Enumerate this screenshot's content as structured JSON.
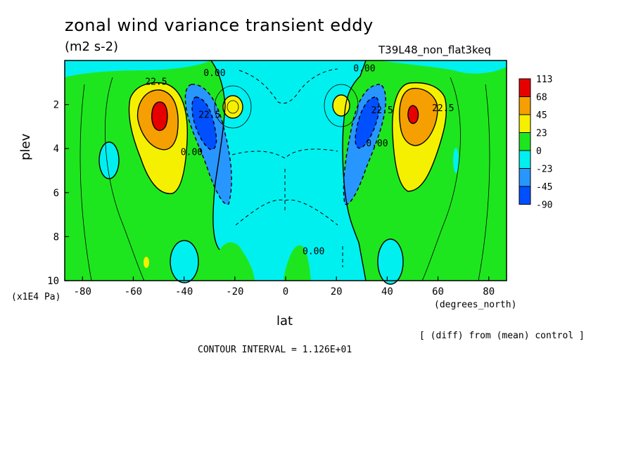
{
  "title": "zonal wind variance transient eddy",
  "units": "(m2 s-2)",
  "run_name": "T39L48_non_flat3keq",
  "xlabel": "lat",
  "ylabel": "plev",
  "xunits": "(degrees_north)",
  "yunits": "(x1E4 Pa)",
  "diff_note": "[ (diff) from (mean) control ]",
  "contour_interval": "CONTOUR INTERVAL = 1.126E+01",
  "chart_data": {
    "type": "heatmap",
    "title": "zonal wind variance transient eddy",
    "units": "(m2 s-2)",
    "xlabel": "lat",
    "ylabel": "plev",
    "xlim": [
      -87,
      87
    ],
    "ylim": [
      10,
      0
    ],
    "x_ticks": [
      -80,
      -60,
      -40,
      -20,
      0,
      20,
      40,
      60,
      80
    ],
    "y_ticks": [
      2,
      4,
      6,
      8,
      10
    ],
    "colorbar": {
      "labels": [
        "113",
        "68",
        "45",
        "23",
        "0",
        "-23",
        "-45",
        "-90"
      ],
      "colors": [
        "#e60000",
        "#f5a000",
        "#f5f000",
        "#1ee61e",
        "#00f0f0",
        "#2896ff",
        "#0050ff"
      ]
    },
    "contour_labels": [
      {
        "text": "22.5",
        "lat": -51,
        "plev": 1.1
      },
      {
        "text": "0.00",
        "lat": -28,
        "plev": 0.7
      },
      {
        "text": "22.5",
        "lat": -30,
        "plev": 2.6
      },
      {
        "text": "0.00",
        "lat": -37,
        "plev": 4.3
      },
      {
        "text": "0.00",
        "lat": 31,
        "plev": 0.5
      },
      {
        "text": "22.5",
        "lat": 38,
        "plev": 2.4
      },
      {
        "text": "0.00",
        "lat": 36,
        "plev": 3.9
      },
      {
        "text": "22.5",
        "lat": 62,
        "plev": 2.3
      },
      {
        "text": "0.00",
        "lat": 11,
        "plev": 8.8
      }
    ],
    "features": [
      {
        "name": "max",
        "lat": -50,
        "plev": 2.5,
        "value": 113
      },
      {
        "name": "max",
        "lat": 49,
        "plev": 2.5,
        "value": 113
      },
      {
        "name": "min",
        "lat": -34,
        "plev": 3.2,
        "value": -45
      },
      {
        "name": "min",
        "lat": 32,
        "plev": 3.2,
        "value": -45
      },
      {
        "name": "secondary-max",
        "lat": -22,
        "plev": 2.1,
        "value": 23
      },
      {
        "name": "secondary-max",
        "lat": 22,
        "plev": 2.1,
        "value": 23
      }
    ]
  }
}
